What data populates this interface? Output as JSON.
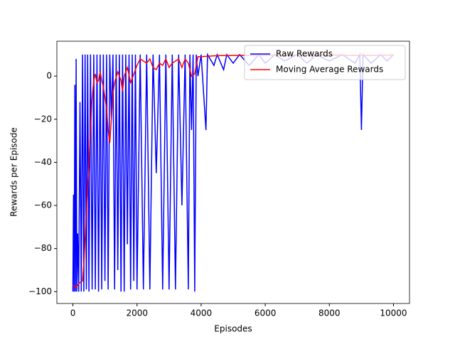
{
  "chart_data": {
    "type": "line",
    "x_label": "Episodes",
    "y_label": "Rewards per Episode",
    "xlim": [
      -500,
      10500
    ],
    "ylim": [
      -105.5,
      16.2
    ],
    "xticks": [
      0,
      2000,
      4000,
      6000,
      8000,
      10000
    ],
    "yticks": [
      {
        "value": -100,
        "label": "−100"
      },
      {
        "value": -80,
        "label": "−80"
      },
      {
        "value": -60,
        "label": "−60"
      },
      {
        "value": -40,
        "label": "−40"
      },
      {
        "value": -20,
        "label": "−20"
      },
      0
    ],
    "legend": "upper right",
    "series": [
      {
        "name": "Raw Rewards",
        "color": "#0000ff",
        "x": [
          0,
          20,
          40,
          60,
          80,
          100,
          120,
          150,
          180,
          220,
          260,
          300,
          340,
          380,
          420,
          460,
          500,
          550,
          600,
          650,
          700,
          750,
          800,
          850,
          900,
          950,
          1000,
          1050,
          1100,
          1150,
          1200,
          1250,
          1300,
          1350,
          1400,
          1450,
          1500,
          1550,
          1600,
          1650,
          1700,
          1750,
          1800,
          1850,
          1900,
          1950,
          2000,
          2100,
          2200,
          2300,
          2400,
          2500,
          2600,
          2700,
          2800,
          2900,
          3000,
          3100,
          3200,
          3300,
          3400,
          3500,
          3600,
          3650,
          3700,
          3750,
          3800,
          3850,
          3900,
          4000,
          4150,
          4200,
          4400,
          4500,
          4700,
          4800,
          5000,
          5200,
          5500,
          5800,
          6000,
          6300,
          6600,
          7000,
          7300,
          7600,
          8000,
          8400,
          8800,
          8950,
          9000,
          9050,
          9300,
          9600,
          9800,
          10000
        ],
        "values": [
          -100,
          -55,
          -100,
          -4,
          -100,
          8,
          -100,
          -73,
          -100,
          -12,
          -100,
          10,
          -100,
          10,
          -99,
          10,
          -100,
          10,
          -99,
          10,
          -99,
          10,
          -100,
          10,
          -99,
          10,
          -95,
          10,
          -99,
          10,
          -20,
          10,
          -99,
          10,
          -90,
          10,
          -100,
          10,
          -100,
          10,
          -78,
          10,
          -99,
          10,
          -95,
          10,
          -99,
          10,
          -99,
          10,
          -99,
          10,
          -45,
          10,
          -99,
          10,
          -99,
          10,
          -99,
          10,
          -60,
          10,
          -99,
          10,
          -25,
          10,
          -100,
          10,
          0,
          10,
          -25,
          10,
          5,
          10,
          3,
          10,
          6,
          10,
          5,
          10,
          6,
          10,
          7,
          10,
          6,
          10,
          7,
          10,
          6,
          10,
          -25,
          10,
          6,
          10,
          7,
          10
        ]
      },
      {
        "name": "Moving Average Rewards",
        "color": "#ff0000",
        "x": [
          0,
          100,
          200,
          300,
          350,
          400,
          450,
          500,
          550,
          600,
          650,
          700,
          750,
          800,
          850,
          900,
          950,
          1000,
          1050,
          1100,
          1150,
          1200,
          1250,
          1300,
          1400,
          1500,
          1550,
          1600,
          1700,
          1800,
          1900,
          2000,
          2100,
          2200,
          2300,
          2400,
          2500,
          2600,
          2700,
          2800,
          2900,
          3000,
          3100,
          3200,
          3300,
          3400,
          3500,
          3600,
          3700,
          3800,
          3900,
          4000,
          4500,
          5000,
          6000,
          7000,
          8000,
          9000,
          10000
        ],
        "values": [
          -97,
          -98,
          -96,
          -95,
          -85,
          -70,
          -55,
          -40,
          -25,
          -10,
          -2,
          1,
          -3,
          -2,
          2,
          -2,
          -5,
          -10,
          -15,
          -25,
          -31,
          -20,
          -8,
          -3,
          2,
          -2,
          -7,
          0,
          4,
          -3,
          1,
          5,
          8,
          7,
          6,
          8,
          4,
          3,
          6,
          5,
          8,
          4,
          6,
          7,
          8,
          4,
          8,
          6,
          0,
          1,
          9,
          9,
          9.5,
          9.6,
          9.7,
          9.8,
          9.8,
          9.6,
          9.8
        ]
      }
    ]
  }
}
